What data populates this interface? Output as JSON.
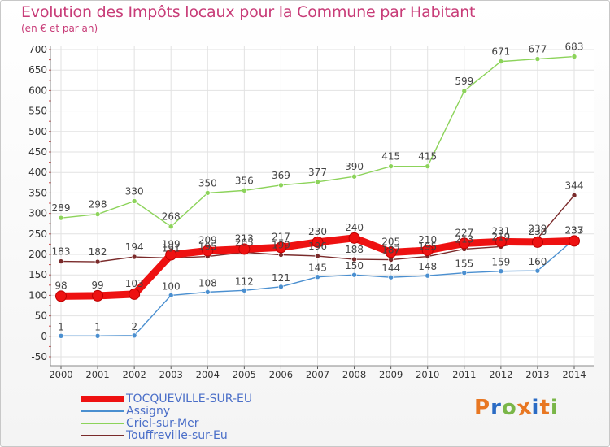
{
  "title": "Evolution des Impôts locaux pour la Commune par Habitant",
  "subtitle": "(en € et par an)",
  "logo": {
    "text": "ProXiti",
    "letters": [
      "P",
      "r",
      "o",
      "x",
      "i",
      "t",
      "i"
    ],
    "colors": [
      "#e87722",
      "#2a6bc4",
      "#7ab648",
      "#e87722",
      "#2a6bc4",
      "#e87722",
      "#7ab648"
    ]
  },
  "chart_data": {
    "type": "line",
    "title": "Evolution des Impôts locaux pour la Commune par Habitant",
    "ylabel": "(en € et par an)",
    "xlabel": "",
    "x": [
      "2000",
      "2001",
      "2002",
      "2003",
      "2004",
      "2005",
      "2006",
      "2007",
      "2008",
      "2009",
      "2010",
      "2011",
      "2012",
      "2013",
      "2014"
    ],
    "ylim": [
      -50,
      700
    ],
    "yticks": [
      "-50",
      "0",
      "50",
      "100",
      "150",
      "200",
      "250",
      "300",
      "350",
      "400",
      "450",
      "500",
      "550",
      "600",
      "650",
      "700"
    ],
    "grid": true,
    "legend_position": "bottom-left",
    "series": [
      {
        "name": "TOCQUEVILLE-SUR-EU",
        "color": "#ee1111",
        "thick": true,
        "values": [
          98,
          99,
          103,
          199,
          209,
          213,
          217,
          230,
          240,
          205,
          210,
          227,
          231,
          230,
          233
        ],
        "labels": [
          "98",
          "99",
          "103",
          "199",
          "209",
          "213",
          "217",
          "230",
          "240",
          "205",
          "210",
          "227",
          "231",
          "230",
          "233"
        ]
      },
      {
        "name": "Assigny",
        "color": "#4a8fd0",
        "thick": false,
        "values": [
          1,
          1,
          2,
          100,
          108,
          112,
          121,
          145,
          150,
          144,
          148,
          155,
          159,
          160,
          237
        ],
        "labels": [
          "1",
          "1",
          "2",
          "100",
          "108",
          "112",
          "121",
          "145",
          "150",
          "144",
          "148",
          "155",
          "159",
          "160",
          "237"
        ]
      },
      {
        "name": "Criel-sur-Mer",
        "color": "#8cd35a",
        "thick": false,
        "values": [
          289,
          298,
          330,
          268,
          350,
          356,
          369,
          377,
          390,
          415,
          415,
          599,
          671,
          677,
          683
        ],
        "labels": [
          "289",
          "298",
          "330",
          "268",
          "350",
          "356",
          "369",
          "377",
          "390",
          "415",
          "415",
          "599",
          "671",
          "677",
          "683"
        ]
      },
      {
        "name": "Touffreville-sur-Eu",
        "color": "#7a2a2a",
        "thick": false,
        "values": [
          183,
          182,
          194,
          191,
          195,
          205,
          199,
          196,
          188,
          187,
          195,
          213,
          219,
          239,
          344
        ],
        "labels": [
          "183",
          "182",
          "194",
          "191",
          "195",
          "205",
          "199",
          "196",
          "188",
          "187",
          "195",
          "213",
          "219",
          "239",
          "344"
        ]
      }
    ]
  }
}
